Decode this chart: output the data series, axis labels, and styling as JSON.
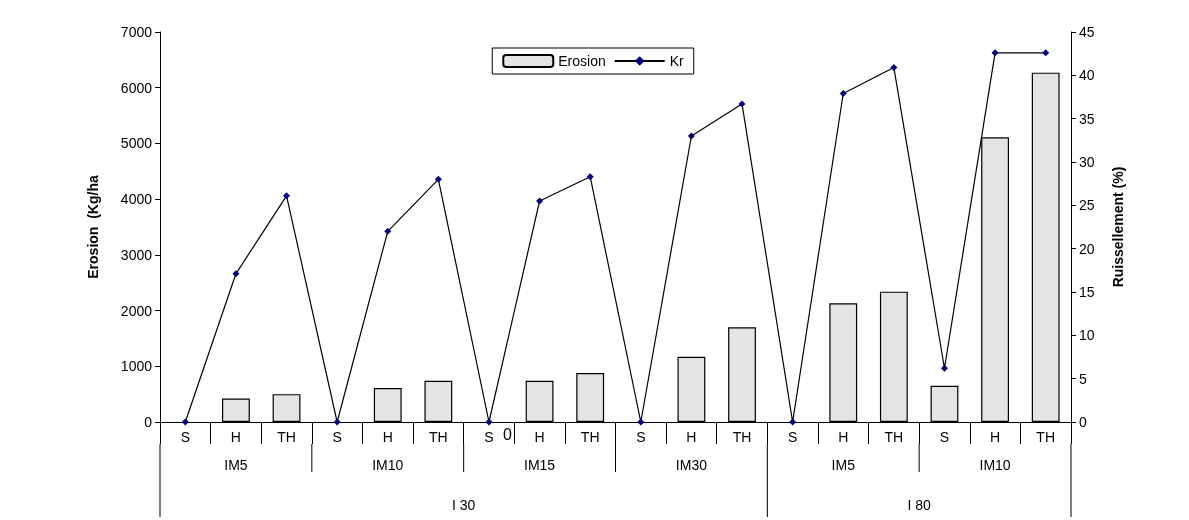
{
  "chart_data": {
    "type": "bar",
    "ylabel": "Erosion  (Kg/ha",
    "y2label": "Ruissellement (%)",
    "categories": [
      "S",
      "H",
      "TH",
      "S",
      "H",
      "TH",
      "S",
      "H",
      "TH",
      "S",
      "H",
      "TH",
      "S",
      "H",
      "TH",
      "S",
      "H",
      "TH"
    ],
    "series": [
      {
        "name": "Erosion",
        "color": "#e4e4e4",
        "values": [
          0,
          420,
          500,
          0,
          610,
          740,
          0,
          740,
          880,
          0,
          1170,
          1700,
          0,
          2130,
          2340,
          650,
          5110,
          6270
        ]
      },
      {
        "name": "Kr",
        "type": "line",
        "axis": "y2",
        "color": "#000080",
        "marker": "diamond",
        "values": [
          0,
          17.1,
          26.1,
          0,
          22.0,
          28.0,
          0,
          25.5,
          28.3,
          0,
          33.0,
          36.7,
          0,
          37.9,
          40.9,
          6.2,
          42.6,
          42.6
        ]
      }
    ],
    "ylim": [
      0,
      7000
    ],
    "yticks": [
      0,
      1000,
      2000,
      3000,
      4000,
      5000,
      6000,
      7000
    ],
    "y2lim": [
      0,
      45
    ],
    "y2ticks": [
      0,
      5,
      10,
      15,
      20,
      25,
      30,
      35,
      40,
      45
    ],
    "annotations": [
      "IM5",
      "IM10",
      "IM15",
      "IM30",
      "IM5",
      "IM10",
      "I 30",
      "I 80",
      "0"
    ],
    "legend": "top",
    "grid": false
  }
}
